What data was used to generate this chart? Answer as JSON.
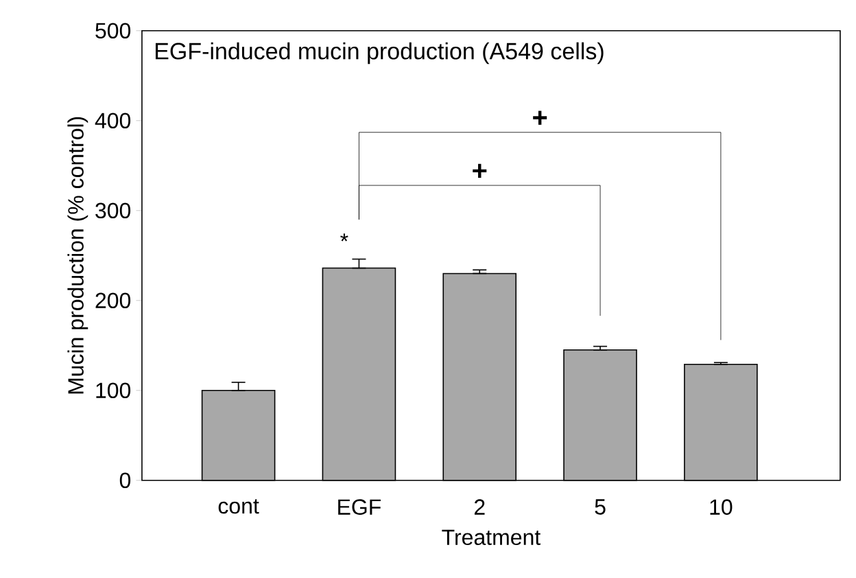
{
  "chart_data": {
    "type": "bar",
    "title": "EGF-induced mucin production (A549 cells)",
    "xlabel": "Treatment",
    "ylabel": "Mucin production (% control)",
    "categories": [
      "cont",
      "EGF",
      "2",
      "5",
      "10"
    ],
    "values": [
      100,
      236,
      230,
      145,
      129
    ],
    "errors": [
      [
        100,
        109
      ],
      [
        236,
        246
      ],
      [
        230,
        234
      ],
      [
        145,
        149
      ],
      [
        129,
        131
      ]
    ],
    "color": "#a8a8a8",
    "ylim": [
      0,
      500
    ],
    "yticks": [
      0,
      100,
      200,
      300,
      400,
      500
    ],
    "annotations": [
      "*",
      "+",
      "+"
    ],
    "grid": false
  }
}
